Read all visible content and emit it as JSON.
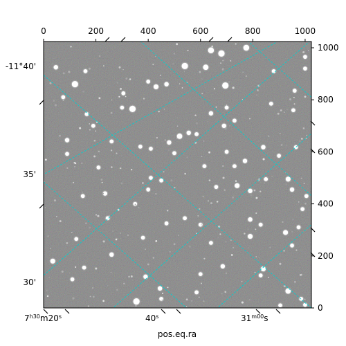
{
  "chart_data": {
    "type": "scatter",
    "title": "",
    "xlabel": "pos.eq.ra",
    "ylabel": "",
    "pixel_x_ticks": [
      "0",
      "200",
      "400",
      "600",
      "800",
      "1000"
    ],
    "pixel_y_ticks": [
      "0",
      "200",
      "400",
      "600",
      "800",
      "1000"
    ],
    "pixel_xlim": [
      0,
      1024
    ],
    "pixel_ylim": [
      0,
      1024
    ],
    "ra_ticks": [
      {
        "label_h": "7",
        "label_hm": "h30",
        "label_m": "m20",
        "label_s": "s"
      },
      {
        "label_h": "",
        "label_hm": "40",
        "label_m": "",
        "label_s": "s"
      },
      {
        "label_h": "",
        "label_hm": "31",
        "label_m": "m00",
        "label_s": "s"
      }
    ],
    "dec_ticks": [
      "-11°40'",
      "35'",
      "30'"
    ],
    "grid": true,
    "grid_color": "#00d0d0",
    "background": "#6a6a6a",
    "stars": [
      {
        "x": 120,
        "y": 860,
        "m": 1.0
      },
      {
        "x": 47,
        "y": 925,
        "m": 0.6
      },
      {
        "x": 160,
        "y": 910,
        "m": 0.5
      },
      {
        "x": 340,
        "y": 765,
        "m": 1.0
      },
      {
        "x": 430,
        "y": 850,
        "m": 0.7
      },
      {
        "x": 470,
        "y": 860,
        "m": 0.6
      },
      {
        "x": 540,
        "y": 930,
        "m": 1.0
      },
      {
        "x": 620,
        "y": 925,
        "m": 0.8
      },
      {
        "x": 640,
        "y": 990,
        "m": 0.9
      },
      {
        "x": 680,
        "y": 978,
        "m": 1.0
      },
      {
        "x": 695,
        "y": 855,
        "m": 1.0
      },
      {
        "x": 700,
        "y": 770,
        "m": 0.5
      },
      {
        "x": 690,
        "y": 700,
        "m": 0.6
      },
      {
        "x": 640,
        "y": 748,
        "m": 0.6
      },
      {
        "x": 520,
        "y": 660,
        "m": 0.8
      },
      {
        "x": 555,
        "y": 673,
        "m": 0.6
      },
      {
        "x": 585,
        "y": 668,
        "m": 0.5
      },
      {
        "x": 480,
        "y": 636,
        "m": 0.6
      },
      {
        "x": 775,
        "y": 1000,
        "m": 0.9
      },
      {
        "x": 880,
        "y": 910,
        "m": 0.5
      },
      {
        "x": 1000,
        "y": 965,
        "m": 0.5
      },
      {
        "x": 1000,
        "y": 920,
        "m": 0.5
      },
      {
        "x": 960,
        "y": 835,
        "m": 0.5
      },
      {
        "x": 955,
        "y": 760,
        "m": 0.5
      },
      {
        "x": 840,
        "y": 618,
        "m": 0.6
      },
      {
        "x": 965,
        "y": 618,
        "m": 0.5
      },
      {
        "x": 900,
        "y": 585,
        "m": 0.5
      },
      {
        "x": 90,
        "y": 645,
        "m": 0.6
      },
      {
        "x": 90,
        "y": 592,
        "m": 0.5
      },
      {
        "x": 260,
        "y": 640,
        "m": 0.5
      },
      {
        "x": 370,
        "y": 620,
        "m": 0.5
      },
      {
        "x": 410,
        "y": 612,
        "m": 0.5
      },
      {
        "x": 700,
        "y": 600,
        "m": 0.5
      },
      {
        "x": 770,
        "y": 565,
        "m": 0.6
      },
      {
        "x": 730,
        "y": 545,
        "m": 0.5
      },
      {
        "x": 165,
        "y": 745,
        "m": 0.5
      },
      {
        "x": 190,
        "y": 700,
        "m": 0.5
      },
      {
        "x": 235,
        "y": 440,
        "m": 0.6
      },
      {
        "x": 150,
        "y": 430,
        "m": 0.5
      },
      {
        "x": 410,
        "y": 500,
        "m": 0.5
      },
      {
        "x": 450,
        "y": 490,
        "m": 0.5
      },
      {
        "x": 660,
        "y": 465,
        "m": 0.5
      },
      {
        "x": 740,
        "y": 470,
        "m": 0.7
      },
      {
        "x": 790,
        "y": 450,
        "m": 0.6
      },
      {
        "x": 850,
        "y": 495,
        "m": 0.5
      },
      {
        "x": 935,
        "y": 495,
        "m": 0.7
      },
      {
        "x": 950,
        "y": 455,
        "m": 0.6
      },
      {
        "x": 1005,
        "y": 430,
        "m": 0.5
      },
      {
        "x": 990,
        "y": 380,
        "m": 0.5
      },
      {
        "x": 790,
        "y": 340,
        "m": 0.6
      },
      {
        "x": 790,
        "y": 275,
        "m": 0.7
      },
      {
        "x": 830,
        "y": 320,
        "m": 0.5
      },
      {
        "x": 925,
        "y": 290,
        "m": 0.7
      },
      {
        "x": 975,
        "y": 310,
        "m": 0.5
      },
      {
        "x": 950,
        "y": 240,
        "m": 0.5
      },
      {
        "x": 685,
        "y": 160,
        "m": 0.6
      },
      {
        "x": 840,
        "y": 150,
        "m": 0.7
      },
      {
        "x": 830,
        "y": 125,
        "m": 0.5
      },
      {
        "x": 935,
        "y": 65,
        "m": 0.8
      },
      {
        "x": 985,
        "y": 35,
        "m": 0.5
      },
      {
        "x": 1000,
        "y": 12,
        "m": 0.5
      },
      {
        "x": 35,
        "y": 180,
        "m": 0.7
      },
      {
        "x": 155,
        "y": 155,
        "m": 0.5
      },
      {
        "x": 110,
        "y": 110,
        "m": 0.5
      },
      {
        "x": 260,
        "y": 205,
        "m": 0.6
      },
      {
        "x": 390,
        "y": 120,
        "m": 0.6
      },
      {
        "x": 445,
        "y": 75,
        "m": 0.6
      },
      {
        "x": 355,
        "y": 25,
        "m": 1.0
      },
      {
        "x": 450,
        "y": 35,
        "m": 0.5
      },
      {
        "x": 585,
        "y": 60,
        "m": 0.5
      },
      {
        "x": 470,
        "y": 325,
        "m": 0.5
      },
      {
        "x": 540,
        "y": 345,
        "m": 0.5
      },
      {
        "x": 640,
        "y": 250,
        "m": 0.5
      },
      {
        "x": 245,
        "y": 345,
        "m": 0.5
      },
      {
        "x": 380,
        "y": 270,
        "m": 0.5
      },
      {
        "x": 600,
        "y": 130,
        "m": 0.5
      },
      {
        "x": 300,
        "y": 770,
        "m": 0.5
      },
      {
        "x": 500,
        "y": 595,
        "m": 0.5
      },
      {
        "x": 870,
        "y": 785,
        "m": 0.5
      },
      {
        "x": 730,
        "y": 720,
        "m": 0.5
      },
      {
        "x": 75,
        "y": 810,
        "m": 0.5
      },
      {
        "x": 400,
        "y": 870,
        "m": 0.5
      },
      {
        "x": 305,
        "y": 825,
        "m": 0.5
      },
      {
        "x": 615,
        "y": 545,
        "m": 0.5
      },
      {
        "x": 350,
        "y": 400,
        "m": 0.5
      },
      {
        "x": 400,
        "y": 455,
        "m": 0.5
      },
      {
        "x": 600,
        "y": 320,
        "m": 0.5
      },
      {
        "x": 210,
        "y": 540,
        "m": 0.5
      },
      {
        "x": 125,
        "y": 265,
        "m": 0.5
      },
      {
        "x": 905,
        "y": 10,
        "m": 0.5
      }
    ]
  }
}
